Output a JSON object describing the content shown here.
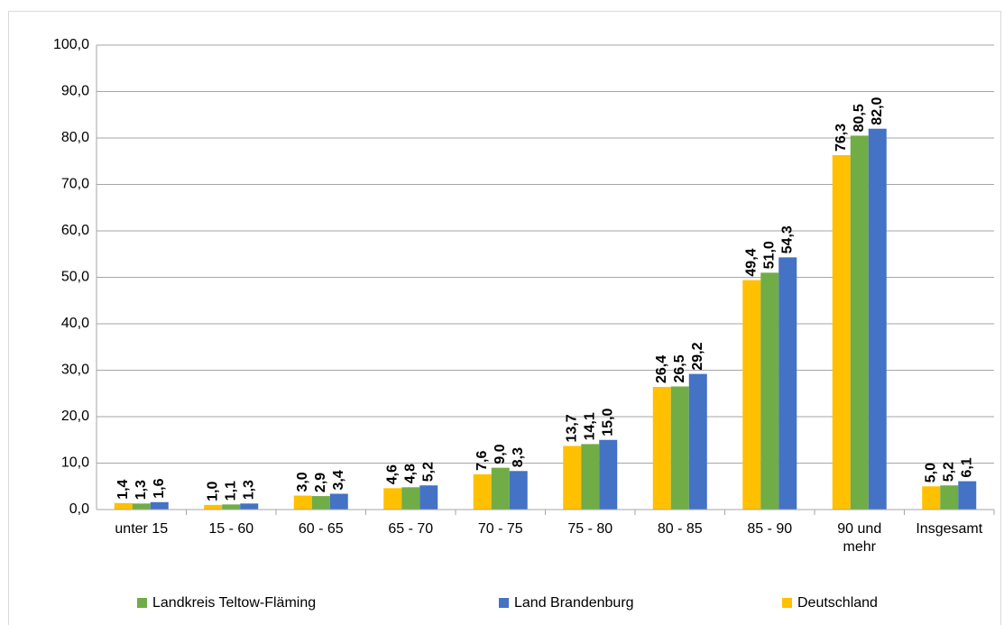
{
  "chart_data": {
    "type": "bar",
    "categories": [
      "unter 15",
      "15 - 60",
      "60 - 65",
      "65 - 70",
      "70 - 75",
      "75 - 80",
      "80 - 85",
      "85 - 90",
      "90 und mehr",
      "Insgesamt"
    ],
    "series": [
      {
        "name": "Deutschland",
        "color": "#ffc000",
        "values": [
          1.4,
          1.0,
          3.0,
          4.6,
          7.6,
          13.7,
          26.4,
          49.4,
          76.3,
          5.0
        ],
        "value_labels": [
          "1,4",
          "1,0",
          "3,0",
          "4,6",
          "7,6",
          "13,7",
          "26,4",
          "49,4",
          "76,3",
          "5,0"
        ]
      },
      {
        "name": "Landkreis Teltow-Fläming",
        "color": "#70ad47",
        "values": [
          1.3,
          1.1,
          2.9,
          4.8,
          9.0,
          14.1,
          26.5,
          51.0,
          80.5,
          5.2
        ],
        "value_labels": [
          "1,3",
          "1,1",
          "2,9",
          "4,8",
          "9,0",
          "14,1",
          "26,5",
          "51,0",
          "80,5",
          "5,2"
        ]
      },
      {
        "name": "Land Brandenburg",
        "color": "#4472c4",
        "values": [
          1.6,
          1.3,
          3.4,
          5.2,
          8.3,
          15.0,
          29.2,
          54.3,
          82.0,
          6.1
        ],
        "value_labels": [
          "1,6",
          "1,3",
          "3,4",
          "5,2",
          "8,3",
          "15,0",
          "29,2",
          "54,3",
          "82,0",
          "6,1"
        ]
      }
    ],
    "ylim": [
      0,
      100
    ],
    "yticks": [
      {
        "value": 0,
        "label": "0,0"
      },
      {
        "value": 10,
        "label": "10,0"
      },
      {
        "value": 20,
        "label": "20,0"
      },
      {
        "value": 30,
        "label": "30,0"
      },
      {
        "value": 40,
        "label": "40,0"
      },
      {
        "value": 50,
        "label": "50,0"
      },
      {
        "value": 60,
        "label": "60,0"
      },
      {
        "value": 70,
        "label": "70,0"
      },
      {
        "value": 80,
        "label": "80,0"
      },
      {
        "value": 90,
        "label": "90,0"
      },
      {
        "value": 100,
        "label": "100,0"
      }
    ],
    "grid": true,
    "legend": "bottom"
  }
}
